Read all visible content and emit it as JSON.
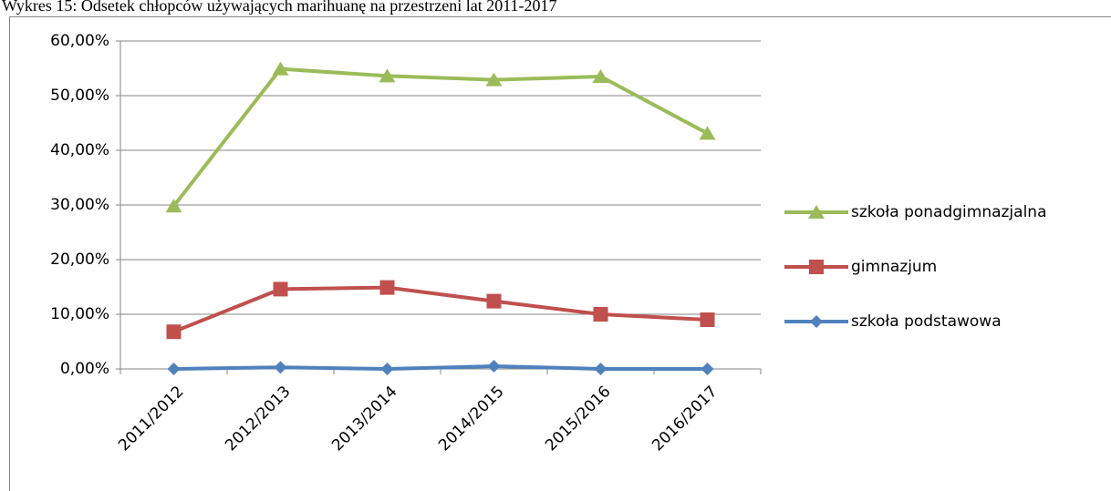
{
  "chart_data": {
    "type": "line",
    "title": "Wykres 15: Odsetek chłopców używających marihuanę na przestrzeni lat 2011-2017",
    "categories": [
      "2011/2012",
      "2012/2013",
      "2013/2014",
      "2014/2015",
      "2015/2016",
      "2016/2017"
    ],
    "series": [
      {
        "name": "szkoła ponadgimnazjalna",
        "color": "#9bbb59",
        "marker": "triangle",
        "values": [
          29.8,
          54.9,
          53.6,
          52.9,
          53.5,
          43.1
        ]
      },
      {
        "name": "gimnazjum",
        "color": "#c0504d",
        "marker": "square",
        "values": [
          6.8,
          14.6,
          14.9,
          12.4,
          10.0,
          9.0
        ]
      },
      {
        "name": "szkoła podstawowa",
        "color": "#4f81bd",
        "marker": "diamond",
        "values": [
          0.0,
          0.3,
          0.0,
          0.5,
          0.0,
          0.0
        ]
      }
    ],
    "ylim": [
      0,
      60
    ],
    "yticks": [
      {
        "value": 0,
        "label": "0,00%"
      },
      {
        "value": 10,
        "label": "10,00%"
      },
      {
        "value": 20,
        "label": "20,00%"
      },
      {
        "value": 30,
        "label": "30,00%"
      },
      {
        "value": 40,
        "label": "40,00%"
      },
      {
        "value": 50,
        "label": "50,00%"
      },
      {
        "value": 60,
        "label": "60,00%"
      }
    ],
    "grid": true,
    "legend": "right"
  }
}
